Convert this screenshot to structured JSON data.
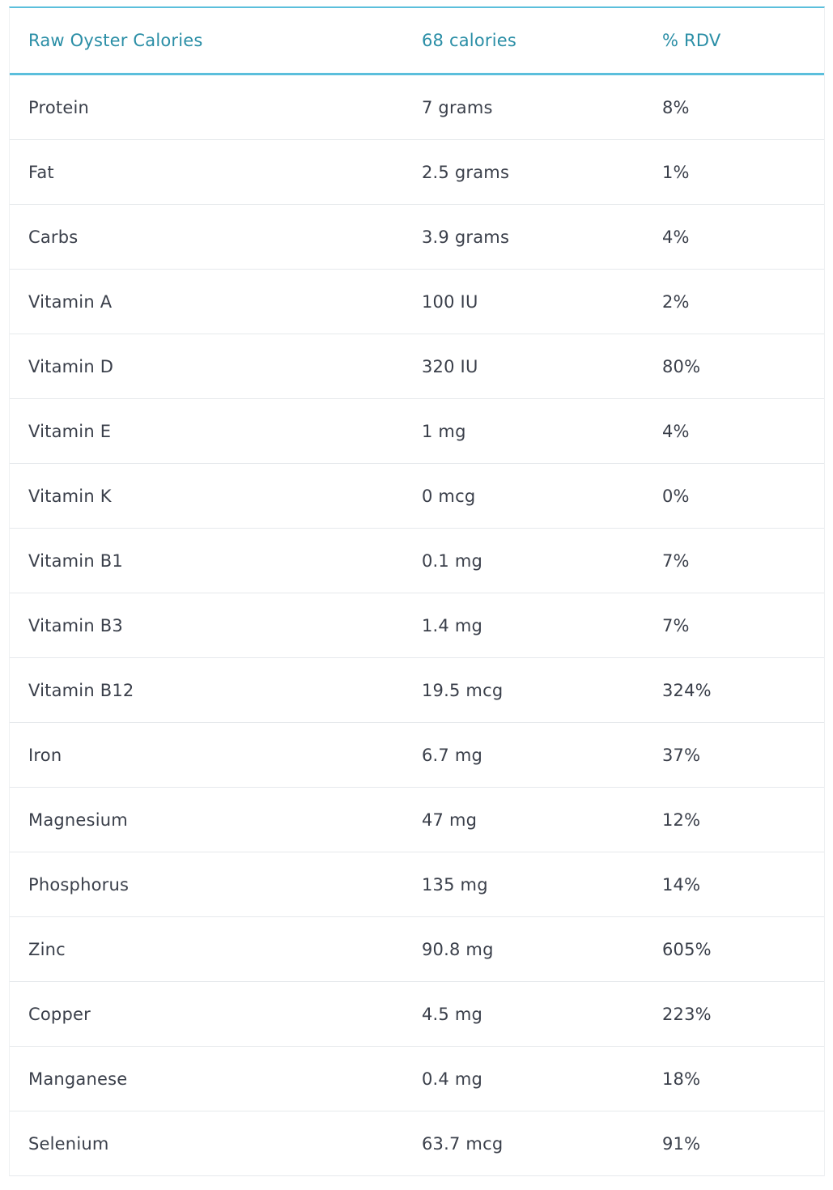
{
  "table": {
    "headers": {
      "nutrient": "Raw Oyster Calories",
      "amount": "68 calories",
      "rdv": "% RDV"
    },
    "rows": [
      {
        "nutrient": "Protein",
        "amount": "7 grams",
        "rdv": "8%"
      },
      {
        "nutrient": "Fat",
        "amount": "2.5 grams",
        "rdv": "1%"
      },
      {
        "nutrient": "Carbs",
        "amount": "3.9 grams",
        "rdv": "4%"
      },
      {
        "nutrient": "Vitamin A",
        "amount": "100 IU",
        "rdv": "2%"
      },
      {
        "nutrient": "Vitamin D",
        "amount": "320 IU",
        "rdv": "80%"
      },
      {
        "nutrient": "Vitamin E",
        "amount": "1 mg",
        "rdv": "4%"
      },
      {
        "nutrient": "Vitamin K",
        "amount": "0 mcg",
        "rdv": "0%"
      },
      {
        "nutrient": "Vitamin B1",
        "amount": "0.1 mg",
        "rdv": "7%"
      },
      {
        "nutrient": "Vitamin B3",
        "amount": "1.4 mg",
        "rdv": "7%"
      },
      {
        "nutrient": "Vitamin B12",
        "amount": "19.5 mcg",
        "rdv": "324%"
      },
      {
        "nutrient": "Iron",
        "amount": "6.7 mg",
        "rdv": "37%"
      },
      {
        "nutrient": "Magnesium",
        "amount": "47 mg",
        "rdv": "12%"
      },
      {
        "nutrient": "Phosphorus",
        "amount": "135 mg",
        "rdv": "14%"
      },
      {
        "nutrient": "Zinc",
        "amount": "90.8 mg",
        "rdv": "605%"
      },
      {
        "nutrient": "Copper",
        "amount": "4.5 mg",
        "rdv": "223%"
      },
      {
        "nutrient": "Manganese",
        "amount": "0.4 mg",
        "rdv": "18%"
      },
      {
        "nutrient": "Selenium",
        "amount": "63.7 mcg",
        "rdv": "91%"
      }
    ]
  },
  "colors": {
    "header_text": "#2a8ea6",
    "accent_border": "#5bbfdc",
    "body_text": "#3a3f4a",
    "row_divider": "#e6e9ec"
  }
}
